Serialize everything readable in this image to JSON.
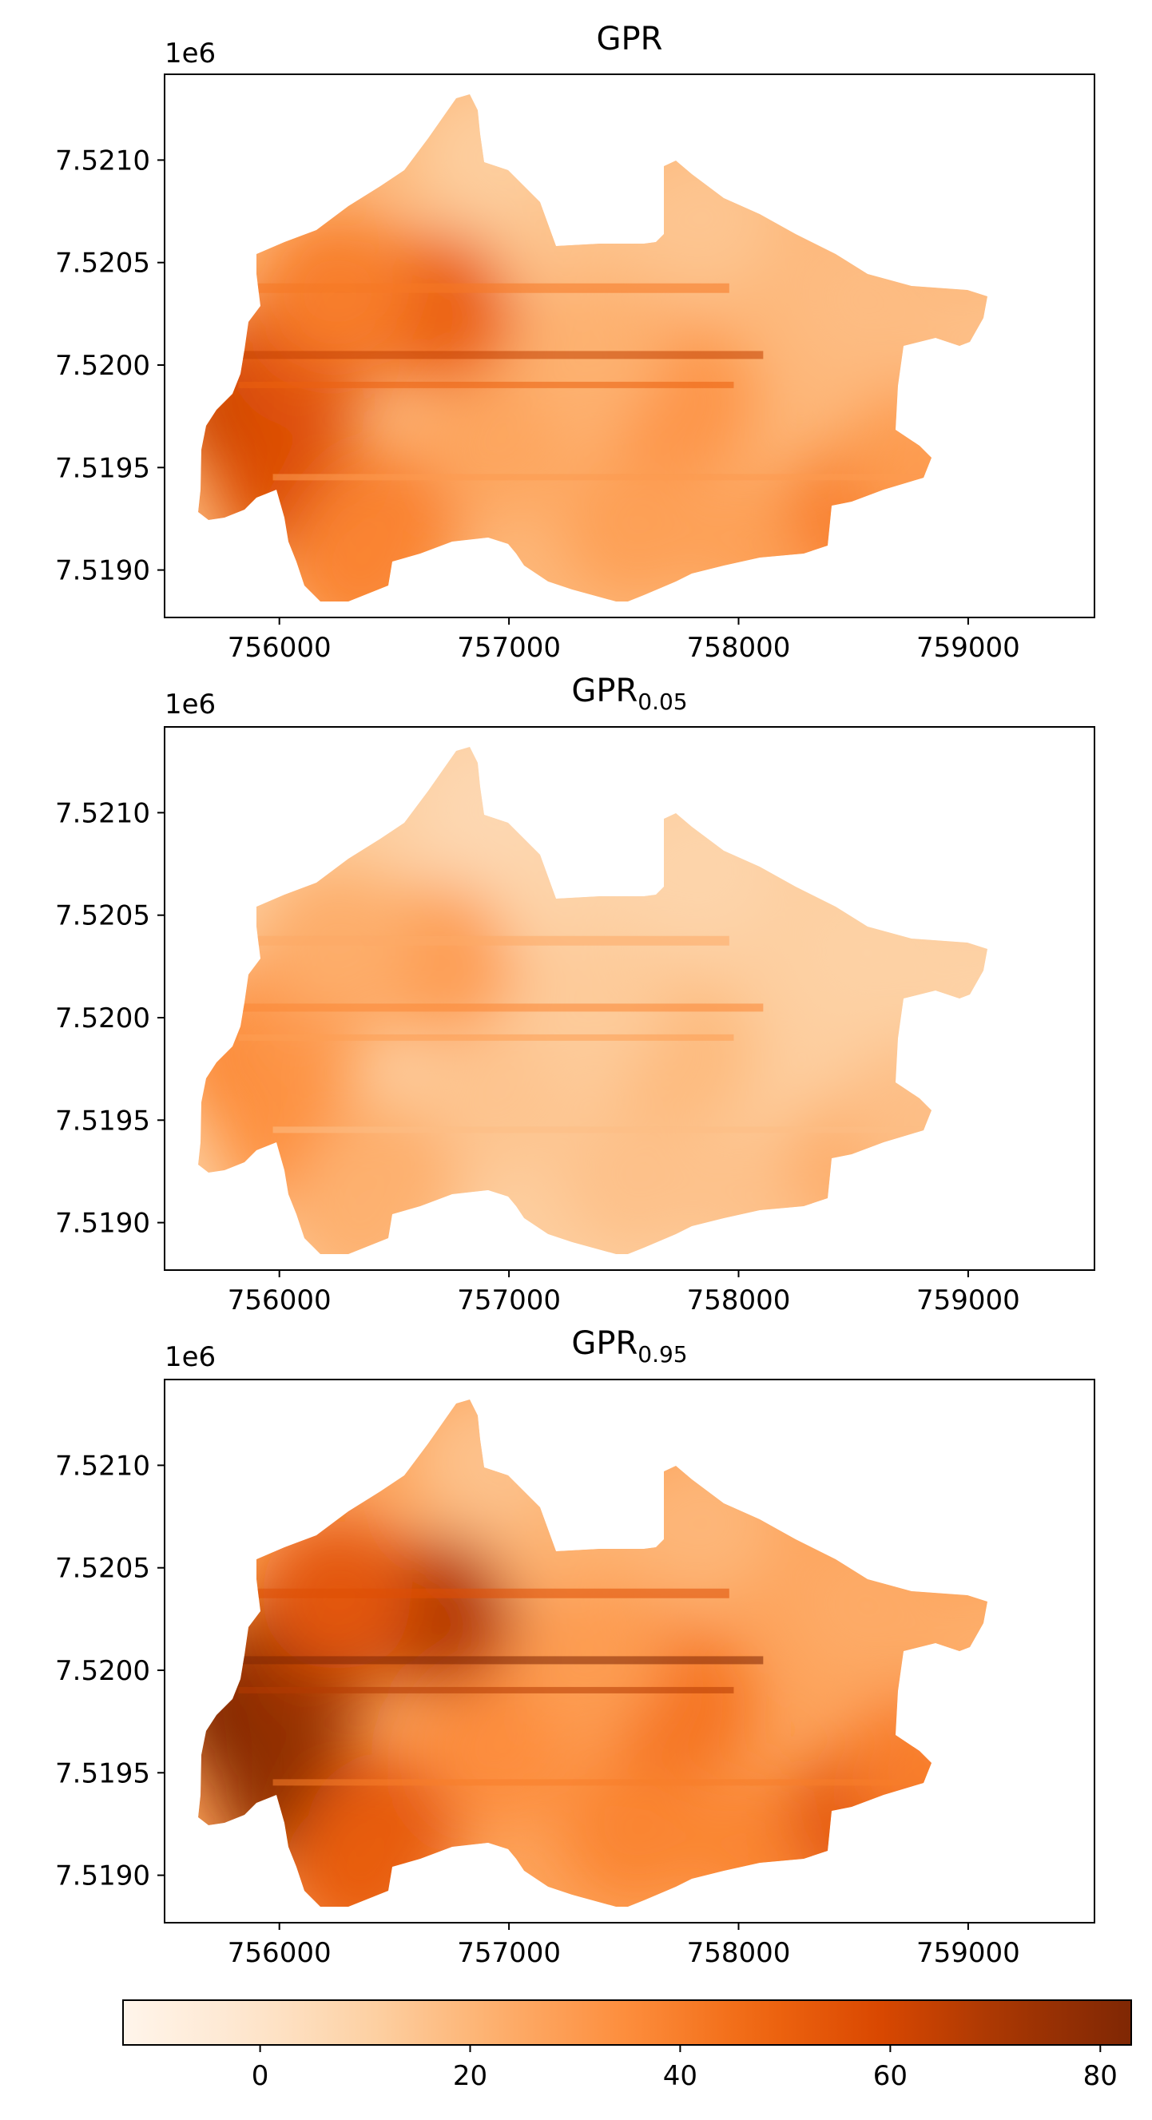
{
  "chart_data": [
    {
      "type": "heatmap",
      "title_main": "GPR",
      "title_sub": "",
      "xlim": [
        755550,
        759600
      ],
      "ylim": [
        7518750,
        7521400
      ],
      "x_ticks": [
        "756000",
        "757000",
        "758000",
        "759000"
      ],
      "x_tick_values": [
        756000,
        757000,
        758000,
        759000
      ],
      "y_ticks": [
        "7.5190",
        "7.5195",
        "7.5200",
        "7.5205",
        "7.5210"
      ],
      "y_tick_values": [
        7519000,
        7519500,
        7520000,
        7520500,
        7521000
      ],
      "y_offset_label": "1e6",
      "value_scale": 1.0,
      "hotspots": [
        {
          "x": 755900,
          "y": 7519800,
          "v": 62
        },
        {
          "x": 756100,
          "y": 7519400,
          "v": 58
        },
        {
          "x": 756150,
          "y": 7520050,
          "v": 55
        },
        {
          "x": 756750,
          "y": 7520250,
          "v": 50
        },
        {
          "x": 756300,
          "y": 7520350,
          "v": 40
        },
        {
          "x": 756500,
          "y": 7519200,
          "v": 40
        },
        {
          "x": 756400,
          "y": 7519000,
          "v": 38
        },
        {
          "x": 757000,
          "y": 7519600,
          "v": 26
        },
        {
          "x": 757600,
          "y": 7519200,
          "v": 28
        },
        {
          "x": 757800,
          "y": 7519800,
          "v": 32
        },
        {
          "x": 758200,
          "y": 7519100,
          "v": 28
        },
        {
          "x": 758600,
          "y": 7519250,
          "v": 40
        },
        {
          "x": 758850,
          "y": 7519500,
          "v": 30
        },
        {
          "x": 757300,
          "y": 7520600,
          "v": 16
        },
        {
          "x": 756950,
          "y": 7521000,
          "v": 12
        },
        {
          "x": 757900,
          "y": 7520700,
          "v": 15
        },
        {
          "x": 758600,
          "y": 7520300,
          "v": 18
        },
        {
          "x": 759200,
          "y": 7520050,
          "v": 17
        },
        {
          "x": 757400,
          "y": 7520050,
          "v": 22
        }
      ]
    },
    {
      "type": "heatmap",
      "title_main": "GPR",
      "title_sub": "0.05",
      "xlim": [
        755550,
        759600
      ],
      "ylim": [
        7518750,
        7521400
      ],
      "x_ticks": [
        "756000",
        "757000",
        "758000",
        "759000"
      ],
      "x_tick_values": [
        756000,
        757000,
        758000,
        759000
      ],
      "y_ticks": [
        "7.5190",
        "7.5195",
        "7.5200",
        "7.5205",
        "7.5210"
      ],
      "y_tick_values": [
        7519000,
        7519500,
        7520000,
        7520500,
        7521000
      ],
      "y_offset_label": "1e6",
      "value_scale": 0.58,
      "hotspots": [
        {
          "x": 755900,
          "y": 7519800,
          "v": 62
        },
        {
          "x": 756100,
          "y": 7519400,
          "v": 58
        },
        {
          "x": 756150,
          "y": 7520050,
          "v": 55
        },
        {
          "x": 756750,
          "y": 7520250,
          "v": 50
        },
        {
          "x": 756300,
          "y": 7520350,
          "v": 40
        },
        {
          "x": 756500,
          "y": 7519200,
          "v": 40
        },
        {
          "x": 756400,
          "y": 7519000,
          "v": 38
        },
        {
          "x": 757000,
          "y": 7519600,
          "v": 26
        },
        {
          "x": 757600,
          "y": 7519200,
          "v": 28
        },
        {
          "x": 757800,
          "y": 7519800,
          "v": 32
        },
        {
          "x": 758200,
          "y": 7519100,
          "v": 28
        },
        {
          "x": 758600,
          "y": 7519250,
          "v": 40
        },
        {
          "x": 758850,
          "y": 7519500,
          "v": 30
        },
        {
          "x": 757300,
          "y": 7520600,
          "v": 16
        },
        {
          "x": 756950,
          "y": 7521000,
          "v": 12
        },
        {
          "x": 757900,
          "y": 7520700,
          "v": 15
        },
        {
          "x": 758600,
          "y": 7520300,
          "v": 18
        },
        {
          "x": 759200,
          "y": 7520050,
          "v": 17
        },
        {
          "x": 757400,
          "y": 7520050,
          "v": 22
        }
      ]
    },
    {
      "type": "heatmap",
      "title_main": "GPR",
      "title_sub": "0.95",
      "xlim": [
        755550,
        759600
      ],
      "ylim": [
        7518750,
        7521400
      ],
      "x_ticks": [
        "756000",
        "757000",
        "758000",
        "759000"
      ],
      "x_tick_values": [
        756000,
        757000,
        758000,
        759000
      ],
      "y_ticks": [
        "7.5190",
        "7.5195",
        "7.5200",
        "7.5205",
        "7.5210"
      ],
      "y_tick_values": [
        7519000,
        7519500,
        7520000,
        7520500,
        7521000
      ],
      "y_offset_label": "1e6",
      "value_scale": 1.35,
      "hotspots": [
        {
          "x": 755900,
          "y": 7519800,
          "v": 62
        },
        {
          "x": 756100,
          "y": 7519400,
          "v": 58
        },
        {
          "x": 756150,
          "y": 7520050,
          "v": 55
        },
        {
          "x": 756750,
          "y": 7520250,
          "v": 50
        },
        {
          "x": 756300,
          "y": 7520350,
          "v": 40
        },
        {
          "x": 756500,
          "y": 7519200,
          "v": 40
        },
        {
          "x": 756400,
          "y": 7519000,
          "v": 38
        },
        {
          "x": 757000,
          "y": 7519600,
          "v": 26
        },
        {
          "x": 757600,
          "y": 7519200,
          "v": 28
        },
        {
          "x": 757800,
          "y": 7519800,
          "v": 32
        },
        {
          "x": 758200,
          "y": 7519100,
          "v": 28
        },
        {
          "x": 758600,
          "y": 7519250,
          "v": 40
        },
        {
          "x": 758850,
          "y": 7519500,
          "v": 30
        },
        {
          "x": 757300,
          "y": 7520600,
          "v": 16
        },
        {
          "x": 756950,
          "y": 7521000,
          "v": 12
        },
        {
          "x": 757900,
          "y": 7520700,
          "v": 15
        },
        {
          "x": 758600,
          "y": 7520300,
          "v": 18
        },
        {
          "x": 759200,
          "y": 7520050,
          "v": 17
        },
        {
          "x": 757400,
          "y": 7520050,
          "v": 22
        }
      ]
    }
  ],
  "colorbar": {
    "colormap": "Oranges",
    "vmin": -13,
    "vmax": 83,
    "ticks": [
      "0",
      "20",
      "40",
      "60",
      "80"
    ],
    "tick_values": [
      0,
      20,
      40,
      60,
      80
    ]
  }
}
